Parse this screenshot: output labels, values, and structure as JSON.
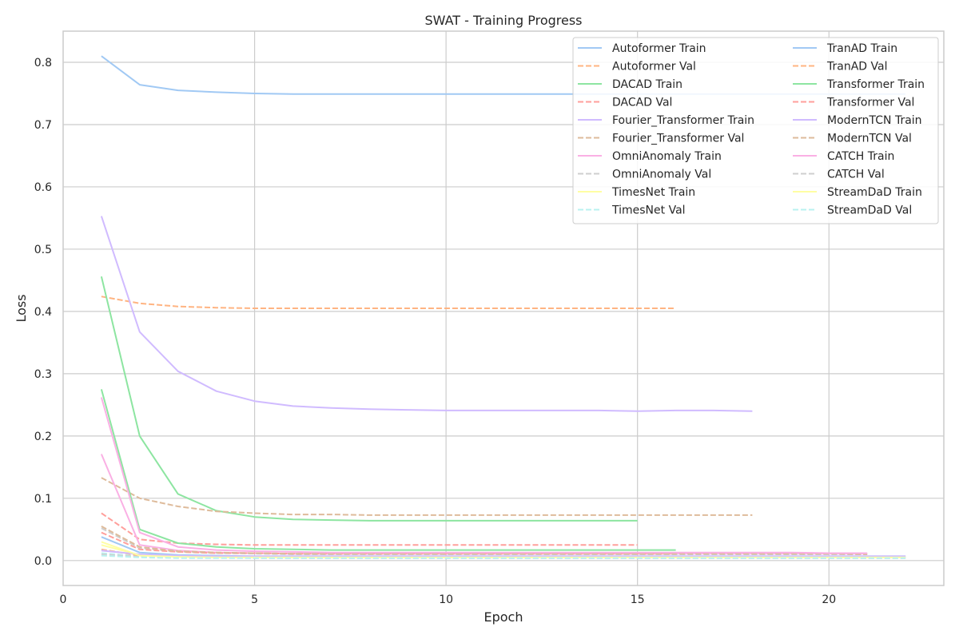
{
  "chart_data": {
    "type": "line",
    "title": "SWAT - Training Progress",
    "xlabel": "Epoch",
    "ylabel": "Loss",
    "xlim": [
      0,
      23
    ],
    "ylim": [
      -0.04,
      0.85
    ],
    "xticks": [
      0,
      5,
      10,
      15,
      20
    ],
    "yticks": [
      0.0,
      0.1,
      0.2,
      0.3,
      0.4,
      0.5,
      0.6,
      0.7,
      0.8
    ],
    "grid": true,
    "legend_position": "top-right",
    "legend_columns": 2,
    "series": [
      {
        "name": "Autoformer Train",
        "color": "#a1c9f4",
        "dash": false,
        "x": [
          1,
          2,
          3,
          4,
          5,
          6,
          7,
          8,
          9,
          10,
          11,
          12,
          13,
          14,
          15,
          16,
          17,
          18,
          19,
          20,
          21,
          22
        ],
        "y": [
          0.81,
          0.764,
          0.755,
          0.752,
          0.75,
          0.749,
          0.749,
          0.749,
          0.749,
          0.749,
          0.749,
          0.749,
          0.749,
          0.749,
          0.749,
          0.749,
          0.749,
          0.749,
          0.749,
          0.749,
          0.749,
          0.749
        ]
      },
      {
        "name": "Autoformer Val",
        "color": "#ffb482",
        "dash": true,
        "x": [
          1,
          2,
          3,
          4,
          5,
          6,
          7,
          8,
          9,
          10,
          11,
          12,
          13,
          14,
          15,
          16
        ],
        "y": [
          0.424,
          0.413,
          0.408,
          0.406,
          0.405,
          0.405,
          0.405,
          0.405,
          0.405,
          0.405,
          0.405,
          0.405,
          0.405,
          0.405,
          0.405,
          0.405
        ]
      },
      {
        "name": "DACAD Train",
        "color": "#8de5a1",
        "dash": false,
        "x": [
          1,
          2,
          3,
          4,
          5,
          6,
          7,
          8,
          9,
          10,
          11,
          12,
          13,
          14,
          15
        ],
        "y": [
          0.456,
          0.2,
          0.107,
          0.08,
          0.07,
          0.066,
          0.065,
          0.064,
          0.064,
          0.064,
          0.064,
          0.064,
          0.064,
          0.064,
          0.064
        ]
      },
      {
        "name": "DACAD Val",
        "color": "#ff9f9b",
        "dash": true,
        "x": [
          1,
          2,
          3,
          4,
          5,
          6,
          7,
          8,
          9,
          10,
          11,
          12,
          13,
          14,
          15
        ],
        "y": [
          0.076,
          0.034,
          0.028,
          0.026,
          0.025,
          0.025,
          0.025,
          0.025,
          0.025,
          0.025,
          0.025,
          0.025,
          0.025,
          0.025,
          0.025
        ]
      },
      {
        "name": "Fourier_Transformer Train",
        "color": "#d0bbff",
        "dash": false,
        "x": [
          1,
          2,
          3,
          4,
          5,
          6,
          7,
          8,
          9,
          10,
          11,
          12,
          13,
          14,
          15,
          16,
          17,
          18
        ],
        "y": [
          0.553,
          0.367,
          0.304,
          0.272,
          0.256,
          0.248,
          0.245,
          0.243,
          0.242,
          0.241,
          0.241,
          0.241,
          0.241,
          0.241,
          0.24,
          0.241,
          0.241,
          0.24
        ]
      },
      {
        "name": "Fourier_Transformer Val",
        "color": "#debb9b",
        "dash": true,
        "x": [
          1,
          2,
          3,
          4,
          5,
          6,
          7,
          8,
          9,
          10,
          11,
          12,
          13,
          14,
          15,
          16,
          17,
          18
        ],
        "y": [
          0.133,
          0.1,
          0.087,
          0.079,
          0.076,
          0.074,
          0.074,
          0.073,
          0.073,
          0.073,
          0.073,
          0.073,
          0.073,
          0.073,
          0.073,
          0.073,
          0.073,
          0.073
        ]
      },
      {
        "name": "OmniAnomaly Train",
        "color": "#fab0e4",
        "dash": false,
        "x": [
          1,
          2,
          3,
          4,
          5,
          6,
          7,
          8,
          9,
          10,
          11,
          12,
          13,
          14,
          15,
          16,
          17,
          18,
          19,
          20,
          21
        ],
        "y": [
          0.171,
          0.025,
          0.016,
          0.013,
          0.012,
          0.011,
          0.011,
          0.011,
          0.011,
          0.011,
          0.011,
          0.011,
          0.011,
          0.011,
          0.011,
          0.011,
          0.011,
          0.011,
          0.011,
          0.011,
          0.011
        ]
      },
      {
        "name": "OmniAnomaly Val",
        "color": "#cfcfcf",
        "dash": true,
        "x": [
          1,
          2,
          3,
          4,
          5,
          6,
          7,
          8,
          9,
          10,
          11,
          12,
          13,
          14,
          15,
          16,
          17,
          18,
          19,
          20,
          21
        ],
        "y": [
          0.052,
          0.02,
          0.014,
          0.012,
          0.011,
          0.01,
          0.01,
          0.01,
          0.01,
          0.01,
          0.01,
          0.01,
          0.01,
          0.01,
          0.01,
          0.01,
          0.01,
          0.01,
          0.01,
          0.01,
          0.01
        ]
      },
      {
        "name": "TimesNet Train",
        "color": "#fffea3",
        "dash": false,
        "x": [
          1,
          2,
          3,
          4,
          5,
          6,
          7,
          8,
          9,
          10,
          11,
          12,
          13,
          14,
          15,
          16,
          17,
          18,
          19,
          20,
          21,
          22
        ],
        "y": [
          0.025,
          0.009,
          0.007,
          0.006,
          0.006,
          0.006,
          0.006,
          0.006,
          0.006,
          0.006,
          0.006,
          0.006,
          0.006,
          0.006,
          0.006,
          0.006,
          0.006,
          0.006,
          0.006,
          0.006,
          0.006,
          0.006
        ]
      },
      {
        "name": "TimesNet Val",
        "color": "#b9f2f0",
        "dash": true,
        "x": [
          1,
          2,
          3,
          4,
          5,
          6,
          7,
          8,
          9,
          10,
          11,
          12,
          13,
          14,
          15,
          16,
          17,
          18,
          19,
          20,
          21,
          22
        ],
        "y": [
          0.012,
          0.007,
          0.006,
          0.005,
          0.005,
          0.005,
          0.005,
          0.005,
          0.005,
          0.005,
          0.005,
          0.005,
          0.005,
          0.005,
          0.005,
          0.005,
          0.005,
          0.005,
          0.005,
          0.005,
          0.005,
          0.005
        ]
      },
      {
        "name": "TranAD Train",
        "color": "#a1c9f4",
        "dash": false,
        "x": [
          1,
          2,
          3,
          4,
          5,
          6,
          7,
          8,
          9,
          10,
          11,
          12,
          13,
          14,
          15,
          16,
          17,
          18,
          19,
          20,
          21,
          22
        ],
        "y": [
          0.038,
          0.013,
          0.009,
          0.008,
          0.007,
          0.007,
          0.007,
          0.007,
          0.007,
          0.007,
          0.007,
          0.007,
          0.007,
          0.007,
          0.007,
          0.007,
          0.007,
          0.007,
          0.007,
          0.007,
          0.007,
          0.007
        ]
      },
      {
        "name": "TranAD Val",
        "color": "#ffb482",
        "dash": true,
        "x": [
          1,
          2,
          3,
          4,
          5,
          6,
          7,
          8,
          9,
          10,
          11,
          12,
          13,
          14,
          15,
          16,
          17,
          18,
          19,
          20,
          21,
          22
        ],
        "y": [
          0.018,
          0.008,
          0.006,
          0.005,
          0.005,
          0.005,
          0.005,
          0.005,
          0.005,
          0.005,
          0.005,
          0.005,
          0.005,
          0.005,
          0.005,
          0.005,
          0.005,
          0.005,
          0.005,
          0.005,
          0.005,
          0.005
        ]
      },
      {
        "name": "Transformer Train",
        "color": "#8de5a1",
        "dash": false,
        "x": [
          1,
          2,
          3,
          4,
          5,
          6,
          7,
          8,
          9,
          10,
          11,
          12,
          13,
          14,
          15,
          16
        ],
        "y": [
          0.275,
          0.05,
          0.028,
          0.022,
          0.019,
          0.018,
          0.017,
          0.017,
          0.017,
          0.017,
          0.017,
          0.017,
          0.017,
          0.017,
          0.017,
          0.017
        ]
      },
      {
        "name": "Transformer Val",
        "color": "#ff9f9b",
        "dash": true,
        "x": [
          1,
          2,
          3,
          4,
          5,
          6,
          7,
          8,
          9,
          10,
          11,
          12,
          13,
          14,
          15,
          16
        ],
        "y": [
          0.045,
          0.018,
          0.014,
          0.012,
          0.012,
          0.011,
          0.011,
          0.011,
          0.011,
          0.011,
          0.011,
          0.011,
          0.011,
          0.011,
          0.011,
          0.011
        ]
      },
      {
        "name": "ModernTCN Train",
        "color": "#d0bbff",
        "dash": false,
        "x": [
          1,
          2,
          3,
          4,
          5,
          6,
          7,
          8,
          9,
          10,
          11,
          12,
          13,
          14,
          15,
          16,
          17,
          18,
          19,
          20,
          21,
          22
        ],
        "y": [
          0.016,
          0.01,
          0.008,
          0.007,
          0.007,
          0.007,
          0.007,
          0.007,
          0.007,
          0.007,
          0.007,
          0.007,
          0.007,
          0.007,
          0.007,
          0.007,
          0.007,
          0.007,
          0.007,
          0.007,
          0.007,
          0.007
        ]
      },
      {
        "name": "ModernTCN Val",
        "color": "#debb9b",
        "dash": true,
        "x": [
          1,
          2,
          3,
          4,
          5,
          6,
          7,
          8,
          9,
          10,
          11,
          12,
          13,
          14,
          15,
          16,
          17,
          18,
          19,
          20,
          21
        ],
        "y": [
          0.055,
          0.022,
          0.015,
          0.013,
          0.012,
          0.011,
          0.011,
          0.011,
          0.011,
          0.011,
          0.011,
          0.011,
          0.011,
          0.011,
          0.011,
          0.011,
          0.011,
          0.011,
          0.011,
          0.011,
          0.01
        ]
      },
      {
        "name": "CATCH Train",
        "color": "#fab0e4",
        "dash": false,
        "x": [
          1,
          2,
          3,
          4,
          5,
          6,
          7,
          8,
          9,
          10,
          11,
          12,
          13,
          14,
          15,
          16,
          17,
          18,
          19,
          20,
          21
        ],
        "y": [
          0.262,
          0.045,
          0.022,
          0.017,
          0.015,
          0.014,
          0.013,
          0.013,
          0.013,
          0.013,
          0.013,
          0.013,
          0.013,
          0.013,
          0.013,
          0.013,
          0.013,
          0.013,
          0.013,
          0.012,
          0.012
        ]
      },
      {
        "name": "CATCH Val",
        "color": "#cfcfcf",
        "dash": true,
        "x": [
          1,
          2,
          3,
          4,
          5,
          6,
          7,
          8,
          9,
          10,
          11,
          12,
          13,
          14,
          15,
          16,
          17,
          18,
          19,
          20,
          21,
          22
        ],
        "y": [
          0.01,
          0.006,
          0.005,
          0.005,
          0.004,
          0.004,
          0.004,
          0.004,
          0.004,
          0.004,
          0.004,
          0.004,
          0.004,
          0.004,
          0.004,
          0.004,
          0.004,
          0.004,
          0.004,
          0.004,
          0.004,
          0.004
        ]
      },
      {
        "name": "StreamDaD Train",
        "color": "#fffea3",
        "dash": false,
        "x": [
          1,
          2,
          3,
          4,
          5,
          6,
          7,
          8,
          9,
          10,
          11,
          12,
          13,
          14,
          15,
          16,
          17,
          18,
          19,
          20,
          21,
          22
        ],
        "y": [
          0.03,
          0.008,
          0.006,
          0.005,
          0.005,
          0.005,
          0.005,
          0.005,
          0.005,
          0.005,
          0.005,
          0.005,
          0.005,
          0.005,
          0.005,
          0.005,
          0.005,
          0.005,
          0.005,
          0.005,
          0.005,
          0.005
        ]
      },
      {
        "name": "StreamDaD Val",
        "color": "#b9f2f0",
        "dash": true,
        "x": [
          1,
          2,
          3,
          4,
          5,
          6,
          7,
          8,
          9,
          10,
          11,
          12,
          13,
          14,
          15,
          16,
          17,
          18,
          19,
          20,
          21,
          22
        ],
        "y": [
          0.008,
          0.005,
          0.004,
          0.004,
          0.004,
          0.004,
          0.004,
          0.004,
          0.004,
          0.004,
          0.004,
          0.004,
          0.004,
          0.004,
          0.004,
          0.004,
          0.004,
          0.004,
          0.004,
          0.004,
          0.004,
          0.004
        ]
      }
    ]
  }
}
